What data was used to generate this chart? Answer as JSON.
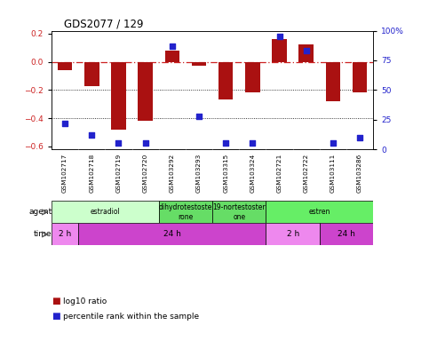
{
  "title": "GDS2077 / 129",
  "samples": [
    "GSM102717",
    "GSM102718",
    "GSM102719",
    "GSM102720",
    "GSM103292",
    "GSM103293",
    "GSM103315",
    "GSM103324",
    "GSM102721",
    "GSM102722",
    "GSM103111",
    "GSM103286"
  ],
  "log10_ratio": [
    -0.06,
    -0.17,
    -0.48,
    -0.42,
    0.08,
    -0.03,
    -0.27,
    -0.22,
    0.16,
    0.12,
    -0.28,
    -0.22
  ],
  "percentile_rank": [
    22,
    12,
    5,
    5,
    87,
    28,
    5,
    5,
    95,
    83,
    5,
    10
  ],
  "agent_groups": [
    {
      "label": "estradiol",
      "start": 0,
      "end": 4,
      "color": "#ccffcc"
    },
    {
      "label": "dihydrotestoste\nrone",
      "start": 4,
      "end": 6,
      "color": "#66dd66"
    },
    {
      "label": "19-nortestoster\none",
      "start": 6,
      "end": 8,
      "color": "#66dd66"
    },
    {
      "label": "estren",
      "start": 8,
      "end": 12,
      "color": "#66ee66"
    }
  ],
  "time_groups": [
    {
      "label": "2 h",
      "start": 0,
      "end": 1,
      "color": "#ee88ee"
    },
    {
      "label": "24 h",
      "start": 1,
      "end": 8,
      "color": "#cc44cc"
    },
    {
      "label": "2 h",
      "start": 8,
      "end": 10,
      "color": "#ee88ee"
    },
    {
      "label": "24 h",
      "start": 10,
      "end": 12,
      "color": "#cc44cc"
    }
  ],
  "ylim": [
    -0.62,
    0.22
  ],
  "yticks_left": [
    -0.6,
    -0.4,
    -0.2,
    0.0,
    0.2
  ],
  "yticks_right": [
    0,
    25,
    50,
    75,
    100
  ],
  "bar_color": "#aa1111",
  "dot_color": "#2222cc",
  "zero_line_color": "#cc2222",
  "bg_color": "#ffffff",
  "bar_width": 0.55,
  "label_bg": "#cccccc",
  "label_sep_color": "#ffffff"
}
